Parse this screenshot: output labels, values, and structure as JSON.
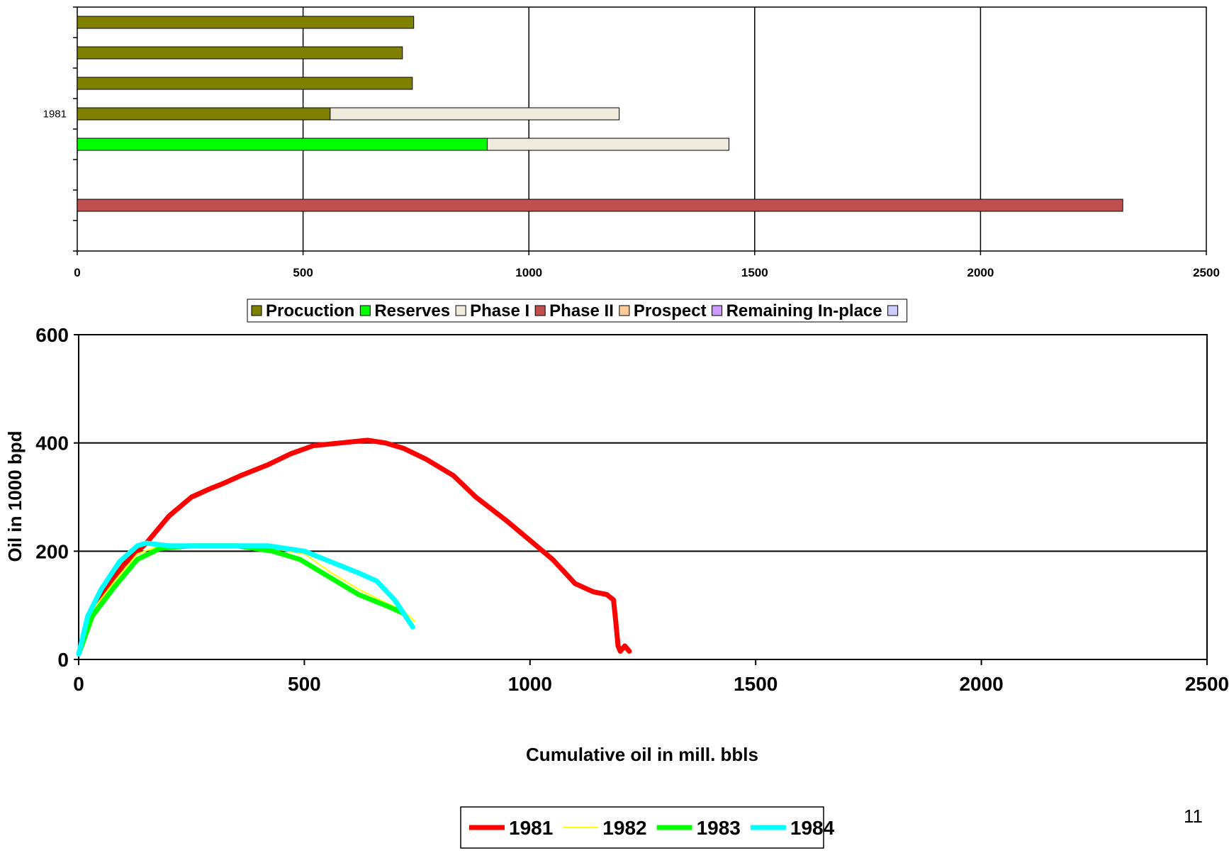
{
  "page_number": "11",
  "chart_data": [
    {
      "type": "bar",
      "orientation": "horizontal",
      "stacked": true,
      "title": "",
      "xlabel": "",
      "ylabel": "",
      "xlim": [
        0,
        2500
      ],
      "xticks": [
        "0",
        "500",
        "1000",
        "1500",
        "2000",
        "2500"
      ],
      "category_labels": [
        "",
        "",
        "",
        "1981",
        "",
        "",
        "",
        ""
      ],
      "grid": "vertical",
      "legend_position": "bottom",
      "legend": [
        {
          "name": "Procuction",
          "color": "#808000"
        },
        {
          "name": "Reserves",
          "color": "#00ff00"
        },
        {
          "name": "Phase I",
          "color": "#efebdc"
        },
        {
          "name": "Phase II",
          "color": "#c0504d"
        },
        {
          "name": "Prospect",
          "color": "#ffcc99"
        },
        {
          "name": "Remaining In-place",
          "color": "#cc99ff"
        },
        {
          "name": "",
          "color": "#ccccff"
        }
      ],
      "rows": [
        {
          "segments": [
            {
              "series": "Procuction",
              "value": 745
            }
          ]
        },
        {
          "segments": [
            {
              "series": "Procuction",
              "value": 720
            }
          ]
        },
        {
          "segments": [
            {
              "series": "Procuction",
              "value": 742
            }
          ]
        },
        {
          "segments": [
            {
              "series": "Procuction",
              "value": 560
            },
            {
              "series": "Phase I",
              "value": 640
            }
          ]
        },
        {
          "segments": [
            {
              "series": "Reserves",
              "value": 908
            },
            {
              "series": "Phase I",
              "value": 535
            }
          ]
        },
        {
          "segments": []
        },
        {
          "segments": [
            {
              "series": "Phase II",
              "value": 2315
            }
          ]
        },
        {
          "segments": []
        }
      ]
    },
    {
      "type": "line",
      "title": "",
      "xlabel": "Cumulative oil in mill. bbls",
      "ylabel": "Oil in 1000 bpd",
      "xlim": [
        0,
        2500
      ],
      "ylim": [
        0,
        600
      ],
      "xticks": [
        "0",
        "500",
        "1000",
        "1500",
        "2000",
        "2500"
      ],
      "yticks": [
        "0",
        "200",
        "400",
        "600"
      ],
      "grid": "horizontal",
      "legend_position": "bottom",
      "series": [
        {
          "name": "1981",
          "color": "#ff0000",
          "x": [
            0,
            20,
            60,
            100,
            150,
            200,
            250,
            290,
            320,
            360,
            420,
            470,
            520,
            580,
            640,
            680,
            720,
            770,
            830,
            880,
            950,
            1000,
            1050,
            1100,
            1140,
            1170,
            1185,
            1190,
            1195,
            1200,
            1210,
            1220
          ],
          "y": [
            10,
            70,
            130,
            175,
            215,
            265,
            300,
            315,
            325,
            340,
            360,
            380,
            395,
            400,
            405,
            400,
            390,
            370,
            340,
            300,
            255,
            220,
            185,
            140,
            125,
            120,
            110,
            70,
            25,
            15,
            25,
            15
          ]
        },
        {
          "name": "1982",
          "color": "#ffff00",
          "x": [
            0,
            30,
            80,
            130,
            180,
            250,
            350,
            430,
            500,
            560,
            620,
            680,
            720,
            745
          ],
          "y": [
            10,
            90,
            145,
            195,
            210,
            210,
            210,
            205,
            195,
            160,
            130,
            105,
            90,
            70
          ]
        },
        {
          "name": "1983",
          "color": "#00ff00",
          "x": [
            0,
            30,
            80,
            130,
            180,
            250,
            350,
            430,
            490,
            560,
            620,
            680,
            720
          ],
          "y": [
            10,
            80,
            135,
            185,
            205,
            210,
            210,
            200,
            185,
            150,
            120,
            100,
            85
          ]
        },
        {
          "name": "1984",
          "color": "#00ffff",
          "x": [
            0,
            20,
            50,
            90,
            130,
            150,
            200,
            300,
            420,
            500,
            560,
            620,
            660,
            700,
            740
          ],
          "y": [
            10,
            80,
            130,
            180,
            210,
            215,
            210,
            210,
            210,
            200,
            180,
            160,
            145,
            110,
            60
          ]
        }
      ]
    }
  ]
}
